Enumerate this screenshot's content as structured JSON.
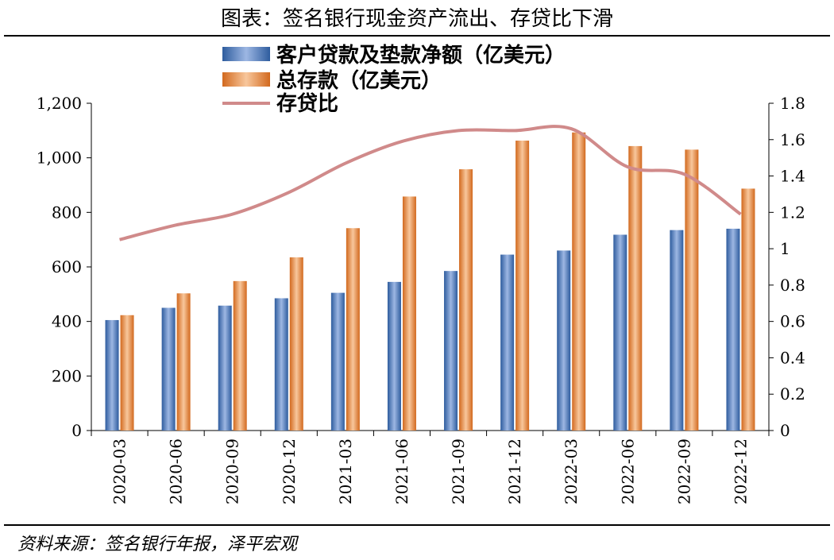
{
  "figure": {
    "title": "图表：签名银行现金资产流出、存贷比下滑",
    "source": "资料来源：签名银行年报，泽平宏观"
  },
  "chart_data": {
    "type": "bar",
    "categories": [
      "2020-03",
      "2020-06",
      "2020-09",
      "2020-12",
      "2021-03",
      "2021-06",
      "2021-09",
      "2021-12",
      "2022-03",
      "2022-06",
      "2022-09",
      "2022-12"
    ],
    "series": [
      {
        "name": "客户贷款及垫款净额（亿美元）",
        "type": "bar",
        "axis": "left",
        "color": "#4472C4",
        "values": [
          405,
          450,
          458,
          485,
          505,
          545,
          585,
          645,
          660,
          718,
          735,
          740
        ]
      },
      {
        "name": "总存款（亿美元）",
        "type": "bar",
        "axis": "left",
        "color": "#ED7D31",
        "values": [
          423,
          503,
          548,
          635,
          742,
          858,
          958,
          1063,
          1093,
          1043,
          1030,
          887
        ]
      },
      {
        "name": "存贷比",
        "type": "line",
        "axis": "right",
        "color": "#D08A8A",
        "values": [
          1.05,
          1.13,
          1.19,
          1.31,
          1.47,
          1.59,
          1.65,
          1.65,
          1.66,
          1.45,
          1.41,
          1.19
        ]
      }
    ],
    "left_axis": {
      "ylim": [
        0,
        1200
      ],
      "ticks": [
        "0",
        "200",
        "400",
        "600",
        "800",
        "1,000",
        "1,200"
      ],
      "tick_values": [
        0,
        200,
        400,
        600,
        800,
        1000,
        1200
      ]
    },
    "right_axis": {
      "ylim": [
        0,
        1.8
      ],
      "ticks": [
        "0",
        "0.2",
        "0.4",
        "0.6",
        "0.8",
        "1",
        "1.2",
        "1.4",
        "1.6",
        "1.8"
      ],
      "tick_values": [
        0,
        0.2,
        0.4,
        0.6,
        0.8,
        1,
        1.2,
        1.4,
        1.6,
        1.8
      ]
    },
    "legend_position": "top-center",
    "grid": false
  }
}
